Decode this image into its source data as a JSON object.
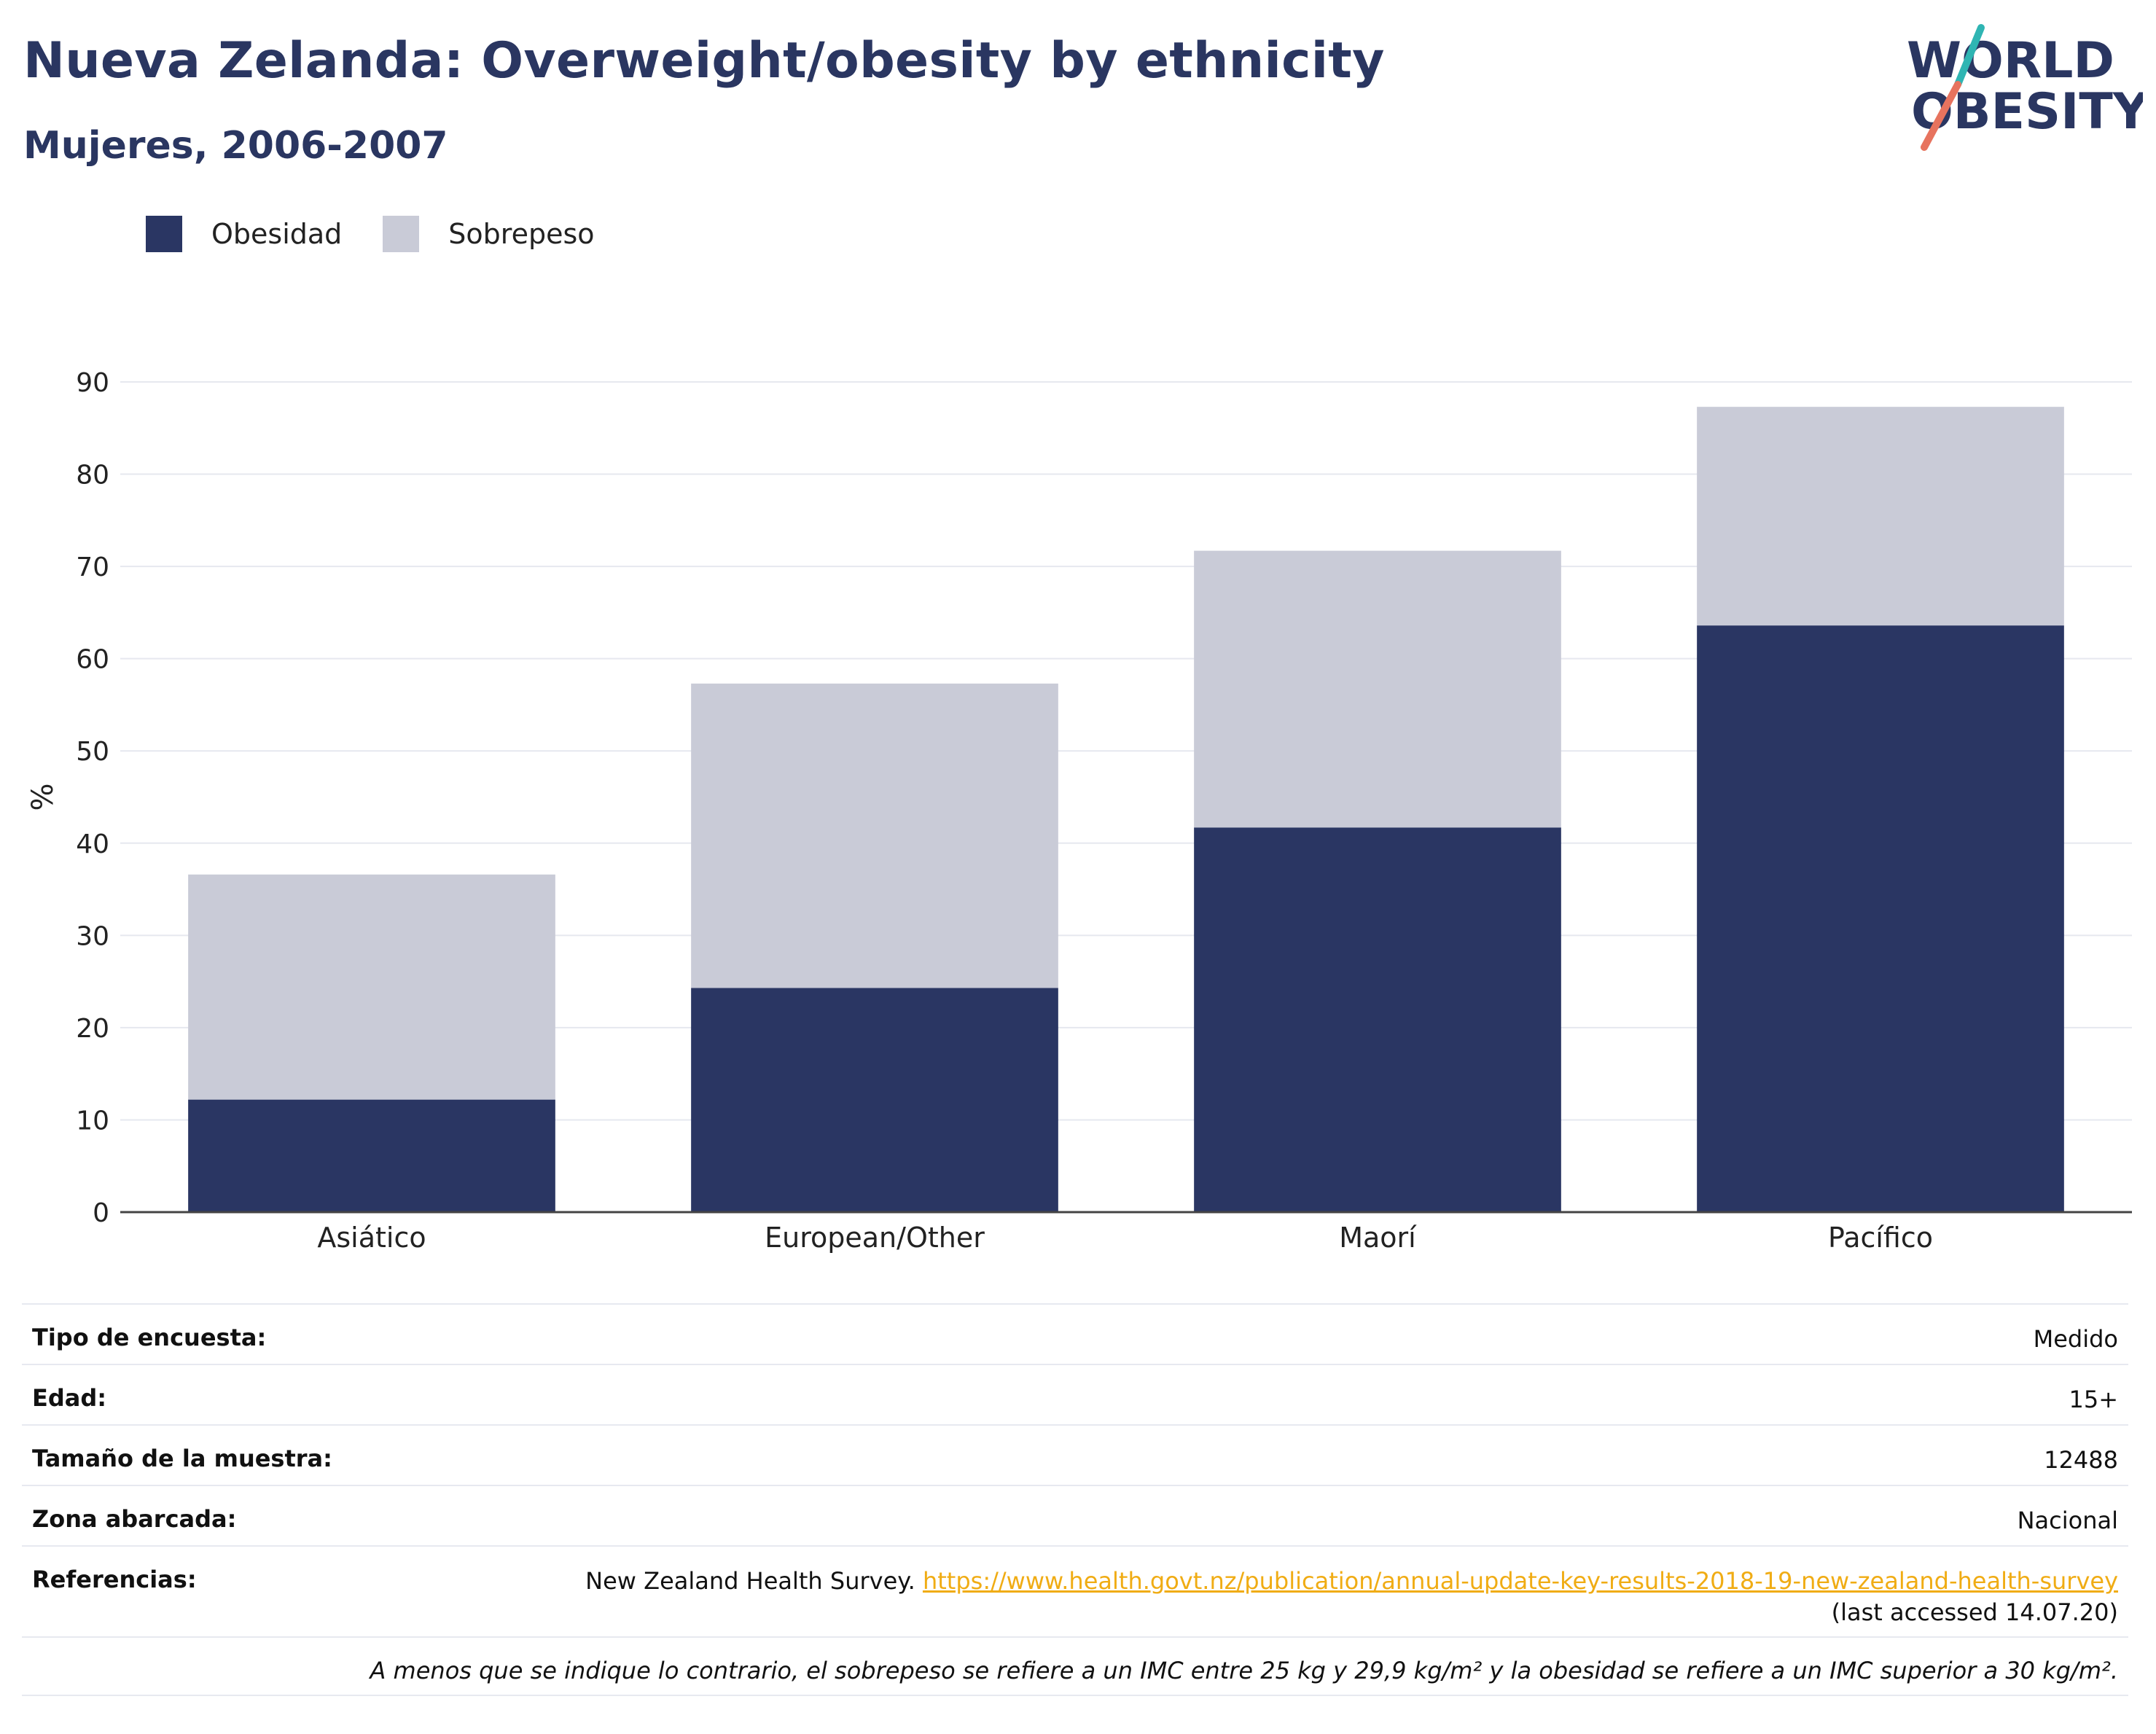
{
  "title": "Nueva Zelanda: Overweight/obesity by ethnicity",
  "subtitle": "Mujeres, 2006-2007",
  "logo": {
    "line1": "WORLD",
    "line2": "OBESITY"
  },
  "colors": {
    "obesity": "#2a3663",
    "overweight": "#c9cbd7",
    "title": "#2a3661",
    "link": "#f0ac14",
    "grid": "#e6e8ef",
    "axis": "#444444"
  },
  "legend": [
    {
      "label": "Obesidad",
      "color": "#2a3663"
    },
    {
      "label": "Sobrepeso",
      "color": "#c9cbd7"
    }
  ],
  "chart_data": {
    "type": "bar",
    "stacked": true,
    "categories": [
      "Asiático",
      "European/Other",
      "Maorí",
      "Pacífico"
    ],
    "series": [
      {
        "name": "Obesidad",
        "values": [
          12.2,
          24.3,
          41.7,
          63.6
        ]
      },
      {
        "name": "Sobrepeso",
        "values": [
          24.4,
          33.0,
          30.0,
          23.7
        ]
      }
    ],
    "ylabel": "%",
    "ylim": [
      0,
      90
    ],
    "yticks": [
      0,
      10,
      20,
      30,
      40,
      50,
      60,
      70,
      80,
      90
    ],
    "grid": true
  },
  "info": {
    "survey_label": "Tipo de encuesta:",
    "survey_value": "Medido",
    "age_label": "Edad:",
    "age_value": "15+",
    "sample_label": "Tamaño de la muestra:",
    "sample_value": "12488",
    "area_label": "Zona abarcada:",
    "area_value": "Nacional",
    "refs_label": "Referencias:",
    "refs_source": "New Zealand Health Survey.",
    "refs_url": "https://www.health.govt.nz/publication/annual-update-key-results-2018-19-new-zealand-health-survey",
    "refs_accessed": "(last accessed 14.07.20)",
    "note": "A menos que se indique lo contrario, el sobrepeso se refiere a un IMC entre 25 kg y 29,9 kg/m² y la obesidad se refiere a un IMC superior a 30 kg/m²."
  }
}
